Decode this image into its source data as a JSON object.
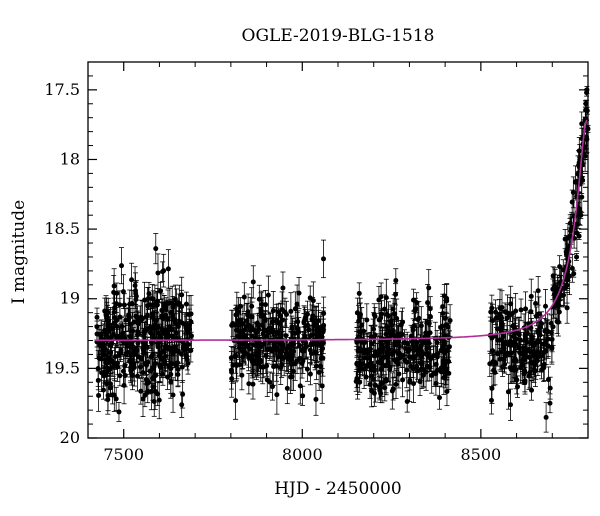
{
  "chart_data": {
    "type": "scatter",
    "title": "OGLE-2019-BLG-1518",
    "xlabel": "HJD - 2450000",
    "ylabel": "I magnitude",
    "xlim": [
      7400,
      8800
    ],
    "ylim": [
      20,
      17.3
    ],
    "y_inverted": true,
    "grid": false,
    "x_ticks": [
      7500,
      8000,
      8500
    ],
    "y_ticks": [
      17.5,
      18,
      18.5,
      19,
      19.5,
      20
    ],
    "x_tick_labels": [
      "7500",
      "8000",
      "8500"
    ],
    "y_tick_labels": [
      "17.5",
      "18",
      "18.5",
      "19",
      "19.5",
      "20"
    ],
    "colors": {
      "points": "#000000",
      "model": "#b0309a"
    },
    "series": [
      {
        "kind": "points_with_errorbars",
        "seasons": [
          {
            "x_range": [
              7425,
              7690
            ],
            "mag_median": 19.3,
            "mag_spread": 0.2,
            "err_typical": 0.1
          },
          {
            "x_range": [
              7800,
              8060
            ],
            "mag_median": 19.3,
            "mag_spread": 0.16,
            "err_typical": 0.1
          },
          {
            "x_range": [
              8150,
              8415
            ],
            "mag_median": 19.35,
            "mag_spread": 0.16,
            "err_typical": 0.1
          },
          {
            "x_range": [
              8525,
              8800
            ],
            "mag_median": 19.35,
            "mag_spread": 0.16,
            "err_typical": 0.1
          }
        ],
        "event_points": [
          [
            8760,
            18.82
          ],
          [
            8768,
            18.7
          ],
          [
            8775,
            18.55
          ],
          [
            8780,
            18.4
          ],
          [
            8785,
            18.15
          ],
          [
            8789,
            17.92
          ],
          [
            8792,
            17.72
          ],
          [
            8794,
            17.6
          ],
          [
            8796,
            17.52
          ],
          [
            8797,
            17.5
          ],
          [
            8798,
            17.65
          ],
          [
            8800,
            17.78
          ]
        ]
      },
      {
        "kind": "model_curve",
        "baseline": 19.3,
        "peak_time": 8797,
        "peak_mag": 17.72,
        "timescale_days": 18
      }
    ]
  }
}
